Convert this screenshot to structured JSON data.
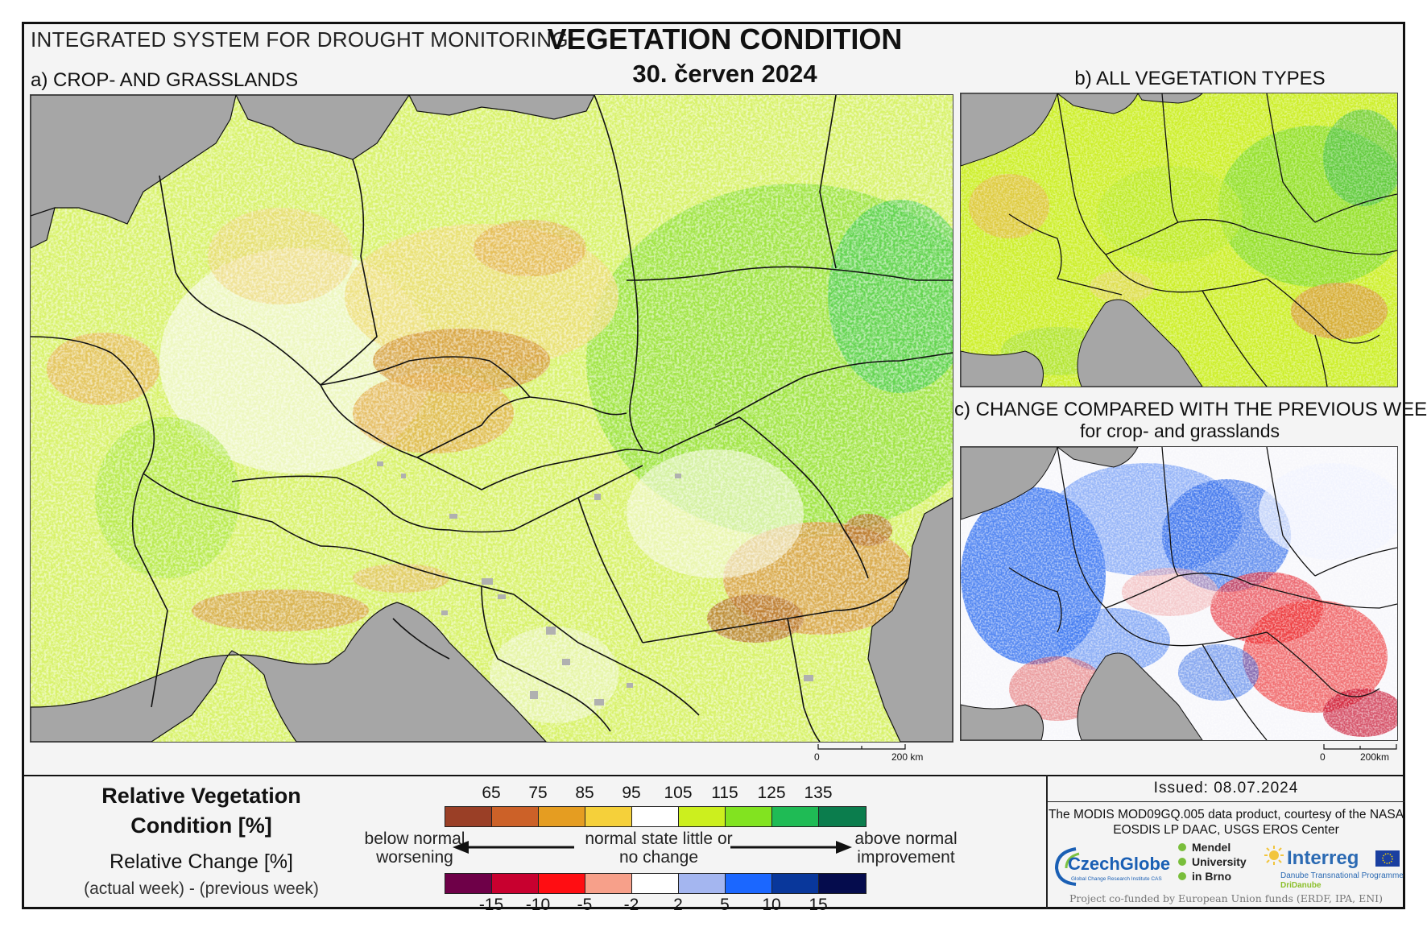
{
  "header": {
    "system_title": "INTEGRATED SYSTEM FOR DROUGHT MONITORING",
    "title": "VEGETATION CONDITION",
    "date": "30. červen 2024"
  },
  "panels": {
    "a_label": "a) CROP- AND GRASSLANDS",
    "b_label": "b) ALL VEGETATION TYPES",
    "c_label": "c) CHANGE COMPARED WITH THE PREVIOUS WEEK",
    "c_sublabel": "for crop- and grasslands"
  },
  "scalebars": {
    "a": {
      "zero": "0",
      "end": "200 km"
    },
    "c": {
      "zero": "0",
      "end": "200km"
    }
  },
  "legend": {
    "rvc_title": "Relative Vegetation Condition [%]",
    "rc_title": "Relative Change [%]",
    "rc_sub": "(actual week) - (previous week)",
    "condition_ticks": [
      "65",
      "75",
      "85",
      "95",
      "105",
      "115",
      "125",
      "135"
    ],
    "condition_colors": [
      "#9a3f26",
      "#cc6128",
      "#e59d21",
      "#f5d03a",
      "#ffffff",
      "#ccef1e",
      "#82e320",
      "#1fbb55",
      "#0b7d4d"
    ],
    "change_ticks": [
      "-15",
      "-10",
      "-5",
      "-2",
      "2",
      "5",
      "10",
      "15"
    ],
    "change_colors": [
      "#6e0048",
      "#c8002f",
      "#ff0d12",
      "#f7a08a",
      "#ffffff",
      "#a4b6f0",
      "#1b67ff",
      "#09379b",
      "#050c4d"
    ],
    "left_text": "below normal worsening",
    "center_text": "normal state little or no change",
    "right_text": "above normal improvement"
  },
  "footer": {
    "issued": "Issued: 08.07.2024",
    "credit": "The MODIS MOD09GQ.005 data product, courtesy of the NASA EOSDIS LP DAAC, USGS EROS Center",
    "logos": {
      "czechglobe": "CzechGlobe",
      "czechglobe_sub": "Global Change Research Institute CAS",
      "mendel1": "Mendel",
      "mendel2": "University",
      "mendel3": "in Brno",
      "interreg": "Interreg",
      "interreg_sub1": "Danube Transnational Programme",
      "interreg_sub2": "DriDanube"
    },
    "funded": "Project co-funded by European Union funds (ERDF, IPA, ENI)"
  }
}
